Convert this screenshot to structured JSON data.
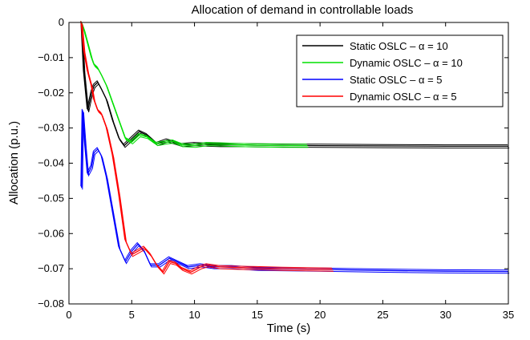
{
  "chart_data": {
    "type": "line",
    "title": "Allocation of demand in controllable loads",
    "xlabel": "Time (s)",
    "ylabel": "Allocation (p.u.)",
    "xlim": [
      0,
      35
    ],
    "ylim": [
      -0.08,
      0
    ],
    "xticks": [
      0,
      5,
      10,
      15,
      20,
      25,
      30,
      35
    ],
    "yticks": [
      0,
      -0.01,
      -0.02,
      -0.03,
      -0.04,
      -0.05,
      -0.06,
      -0.07,
      -0.08
    ],
    "xtick_labels": [
      "0",
      "5",
      "10",
      "15",
      "20",
      "25",
      "30",
      "35"
    ],
    "ytick_labels": [
      "0",
      "−0.01",
      "−0.02",
      "−0.03",
      "−0.04",
      "−0.05",
      "−0.06",
      "−0.07",
      "−0.08"
    ],
    "legend_position": "top-right",
    "grid": false,
    "series": [
      {
        "name": "Static OSLC – α = 10",
        "color": "#000000",
        "x": [
          1.0,
          1.2,
          1.5,
          1.8,
          2.0,
          2.3,
          2.6,
          3.0,
          3.5,
          4.0,
          4.4,
          5.0,
          5.6,
          6.2,
          7.0,
          7.8,
          8.3,
          9.0,
          10.0,
          11.0,
          12.0,
          13.5,
          15.0,
          20.0,
          25.0,
          30.0,
          35.0
        ],
        "y": [
          0.0,
          -0.014,
          -0.025,
          -0.02,
          -0.018,
          -0.017,
          -0.019,
          -0.022,
          -0.028,
          -0.033,
          -0.035,
          -0.033,
          -0.031,
          -0.032,
          -0.0345,
          -0.0335,
          -0.034,
          -0.0348,
          -0.0345,
          -0.0347,
          -0.0348,
          -0.0348,
          -0.0349,
          -0.035,
          -0.0351,
          -0.0352,
          -0.0352
        ]
      },
      {
        "name": "Dynamic OSLC – α = 10",
        "color": "#00e000",
        "x": [
          1.0,
          1.2,
          1.5,
          1.8,
          2.0,
          2.3,
          2.6,
          3.0,
          3.5,
          4.0,
          4.5,
          5.0,
          5.6,
          6.2,
          7.0,
          7.8,
          8.3,
          9.0,
          10.0,
          11.0,
          12.0,
          13.5,
          15.0,
          17.0,
          19.0
        ],
        "y": [
          0.0,
          -0.002,
          -0.006,
          -0.01,
          -0.012,
          -0.013,
          -0.015,
          -0.018,
          -0.023,
          -0.028,
          -0.033,
          -0.034,
          -0.032,
          -0.0325,
          -0.0345,
          -0.034,
          -0.0338,
          -0.0348,
          -0.035,
          -0.0345,
          -0.0346,
          -0.0348,
          -0.0349,
          -0.035,
          -0.035
        ]
      },
      {
        "name": "Static OSLC – α = 5",
        "color": "#0000ff",
        "x": [
          1.0,
          1.1,
          1.3,
          1.5,
          1.8,
          2.0,
          2.3,
          2.6,
          3.0,
          3.5,
          4.0,
          4.5,
          5.0,
          5.5,
          6.0,
          6.5,
          7.2,
          8.0,
          8.6,
          9.5,
          10.5,
          11.5,
          13.0,
          15.0,
          20.0,
          25.0,
          30.0,
          35.0
        ],
        "y": [
          -0.047,
          -0.025,
          -0.035,
          -0.043,
          -0.041,
          -0.037,
          -0.036,
          -0.038,
          -0.044,
          -0.054,
          -0.064,
          -0.068,
          -0.065,
          -0.063,
          -0.065,
          -0.069,
          -0.069,
          -0.067,
          -0.068,
          -0.0695,
          -0.069,
          -0.0695,
          -0.0695,
          -0.07,
          -0.0702,
          -0.0705,
          -0.0707,
          -0.0708
        ]
      },
      {
        "name": "Dynamic OSLC – α = 5",
        "color": "#ff0000",
        "x": [
          1.0,
          1.2,
          1.5,
          1.8,
          2.0,
          2.3,
          2.6,
          3.0,
          3.5,
          4.0,
          4.5,
          5.0,
          5.5,
          6.0,
          6.5,
          7.0,
          7.5,
          8.0,
          8.5,
          9.0,
          9.7,
          10.5,
          11.0,
          12.0,
          13.5,
          15.0,
          17.0,
          19.0,
          21.0
        ],
        "y": [
          0.0,
          -0.008,
          -0.014,
          -0.018,
          -0.022,
          -0.025,
          -0.026,
          -0.03,
          -0.038,
          -0.049,
          -0.062,
          -0.066,
          -0.065,
          -0.064,
          -0.066,
          -0.069,
          -0.071,
          -0.068,
          -0.0685,
          -0.07,
          -0.071,
          -0.0695,
          -0.069,
          -0.0695,
          -0.0697,
          -0.0698,
          -0.07,
          -0.0701,
          -0.0702
        ]
      }
    ]
  }
}
